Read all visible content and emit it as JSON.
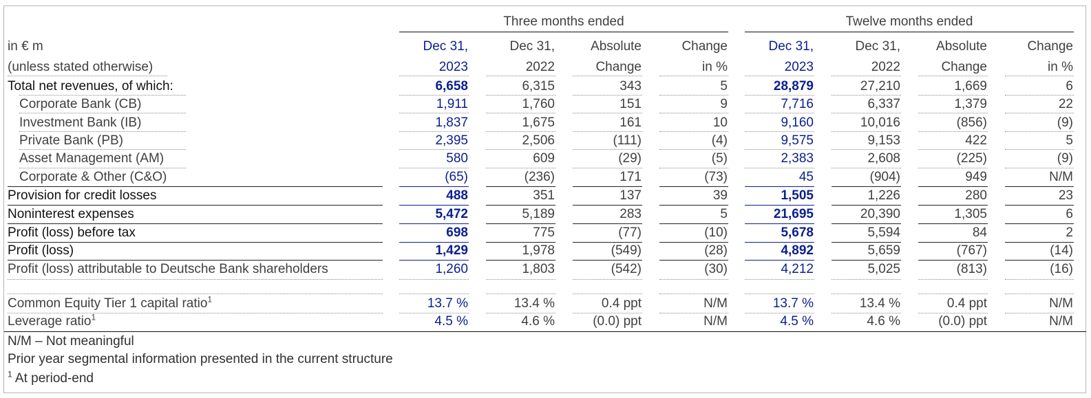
{
  "header": {
    "group_three": "Three months ended",
    "group_twelve": "Twelve months ended",
    "unit_line1": "in € m",
    "unit_line2": "(unless stated otherwise)",
    "columns": [
      {
        "line1": "Dec 31,",
        "line2": "2023"
      },
      {
        "line1": "Dec 31,",
        "line2": "2022"
      },
      {
        "line1": "Absolute",
        "line2": "Change"
      },
      {
        "line1": "Change",
        "line2": "in %"
      },
      {
        "line1": "Dec 31,",
        "line2": "2023"
      },
      {
        "line1": "Dec 31,",
        "line2": "2022"
      },
      {
        "line1": "Absolute",
        "line2": "Change"
      },
      {
        "line1": "Change",
        "line2": "in %"
      }
    ]
  },
  "rows": [
    {
      "label": "Total net revenues, of which:",
      "values": [
        "6,658",
        "6,315",
        "343",
        "5",
        "28,879",
        "27,210",
        "1,669",
        "6"
      ]
    },
    {
      "label": "Corporate Bank (CB)",
      "values": [
        "1,911",
        "1,760",
        "151",
        "9",
        "7,716",
        "6,337",
        "1,379",
        "22"
      ]
    },
    {
      "label": "Investment Bank (IB)",
      "values": [
        "1,837",
        "1,675",
        "161",
        "10",
        "9,160",
        "10,016",
        "(856)",
        "(9)"
      ]
    },
    {
      "label": "Private Bank (PB)",
      "values": [
        "2,395",
        "2,506",
        "(111)",
        "(4)",
        "9,575",
        "9,153",
        "422",
        "5"
      ]
    },
    {
      "label": "Asset Management (AM)",
      "values": [
        "580",
        "609",
        "(29)",
        "(5)",
        "2,383",
        "2,608",
        "(225)",
        "(9)"
      ]
    },
    {
      "label": "Corporate & Other (C&O)",
      "values": [
        "(65)",
        "(236)",
        "171",
        "(73)",
        "45",
        "(904)",
        "949",
        "N/M"
      ]
    },
    {
      "label": "Provision for credit losses",
      "values": [
        "488",
        "351",
        "137",
        "39",
        "1,505",
        "1,226",
        "280",
        "23"
      ]
    },
    {
      "label": "Noninterest expenses",
      "values": [
        "5,472",
        "5,189",
        "283",
        "5",
        "21,695",
        "20,390",
        "1,305",
        "6"
      ]
    },
    {
      "label": "Profit (loss) before tax",
      "values": [
        "698",
        "775",
        "(77)",
        "(10)",
        "5,678",
        "5,594",
        "84",
        "2"
      ]
    },
    {
      "label": "Profit (loss)",
      "values": [
        "1,429",
        "1,978",
        "(549)",
        "(28)",
        "4,892",
        "5,659",
        "(767)",
        "(14)"
      ]
    },
    {
      "label": "Profit (loss) attributable to Deutsche Bank shareholders",
      "values": [
        "1,260",
        "1,803",
        "(542)",
        "(30)",
        "4,212",
        "5,025",
        "(813)",
        "(16)"
      ]
    }
  ],
  "ratios": [
    {
      "label": "Common Equity Tier 1 capital ratio",
      "sup": "1",
      "values": [
        "13.7 %",
        "13.4 %",
        "0.4  ppt",
        "N/M",
        "13.7 %",
        "13.4 %",
        "0.4  ppt",
        "N/M"
      ]
    },
    {
      "label": "Leverage ratio",
      "sup": "1",
      "values": [
        "4.5 %",
        "4.6 %",
        "(0.0) ppt",
        "N/M",
        "4.5 %",
        "4.6 %",
        "(0.0) ppt",
        "N/M"
      ]
    }
  ],
  "footnotes": {
    "nm": "N/M – Not meaningful",
    "prior_year": "Prior year segmental information presented in the current structure",
    "sup_marker": "1",
    "period_end": "At period-end"
  }
}
